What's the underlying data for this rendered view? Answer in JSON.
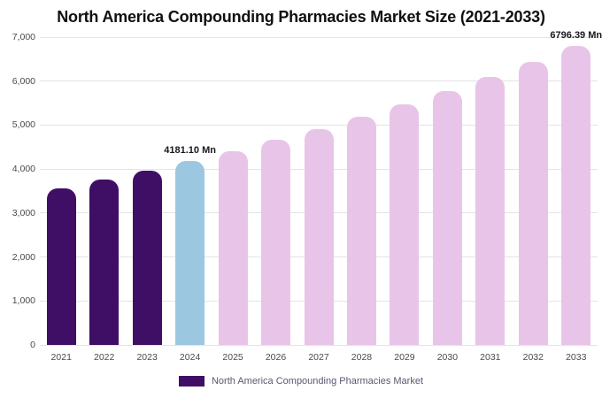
{
  "chart_data": {
    "type": "bar",
    "title": "North America Compounding Pharmacies Market Size (2021-2033)",
    "categories": [
      "2021",
      "2022",
      "2023",
      "2024",
      "2025",
      "2026",
      "2027",
      "2028",
      "2029",
      "2030",
      "2031",
      "2032",
      "2033"
    ],
    "values": [
      3556,
      3753,
      3961,
      4181.1,
      4412,
      4657,
      4915,
      5188,
      5476,
      5779,
      6100,
      6439,
      6796.39
    ],
    "unit": "Mn",
    "bar_colors": [
      "#3f0f66",
      "#3f0f66",
      "#3f0f66",
      "#9cc7e1",
      "#e8c5e8",
      "#e8c5e8",
      "#e8c5e8",
      "#e8c5e8",
      "#e8c5e8",
      "#e8c5e8",
      "#e8c5e8",
      "#e8c5e8",
      "#e8c5e8"
    ],
    "ylim": [
      0,
      7000
    ],
    "ytick_step": 1000,
    "ytick_labels": [
      "0",
      "1,000",
      "2,000",
      "3,000",
      "4,000",
      "5,000",
      "6,000",
      "7,000"
    ],
    "grid": true,
    "annotations": [
      {
        "category": "2024",
        "text": "4181.10 Mn"
      },
      {
        "category": "2033",
        "text": "6796.39 Mn"
      }
    ],
    "legend": [
      {
        "label": "North America Compounding Pharmacies Market",
        "color": "#3f0f66"
      }
    ],
    "legend_position": "bottom"
  }
}
